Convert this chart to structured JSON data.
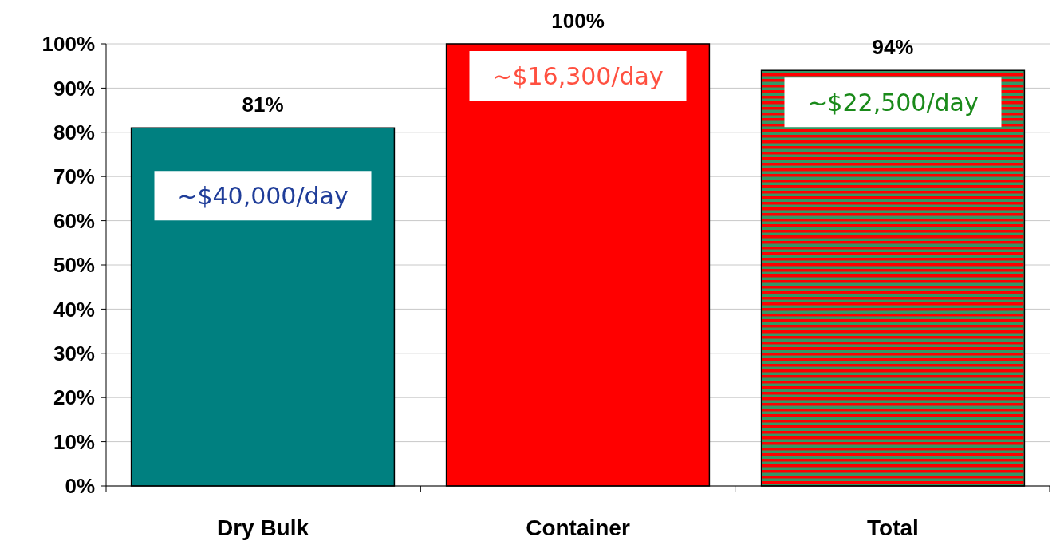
{
  "chart_data": {
    "type": "bar",
    "categories": [
      "Dry Bulk",
      "Container",
      "Total"
    ],
    "values": [
      81,
      100,
      94
    ],
    "colors": [
      "#008080",
      "#ff0000",
      "#339966"
    ],
    "value_labels": [
      "81%",
      "100%",
      "94%"
    ],
    "ylim": [
      0,
      100
    ],
    "yticks": [
      {
        "value": 0,
        "label": "0%"
      },
      {
        "value": 10,
        "label": "10%"
      },
      {
        "value": 20,
        "label": "20%"
      },
      {
        "value": 30,
        "label": "30%"
      },
      {
        "value": 40,
        "label": "40%"
      },
      {
        "value": 50,
        "label": "50%"
      },
      {
        "value": 60,
        "label": "60%"
      },
      {
        "value": 70,
        "label": "70%"
      },
      {
        "value": 80,
        "label": "80%"
      },
      {
        "value": 90,
        "label": "90%"
      },
      {
        "value": 100,
        "label": "100%"
      }
    ],
    "grid": "y",
    "annotations": [
      "~$40,000/day",
      "~$16,300/day",
      "~$22,500/day"
    ]
  }
}
